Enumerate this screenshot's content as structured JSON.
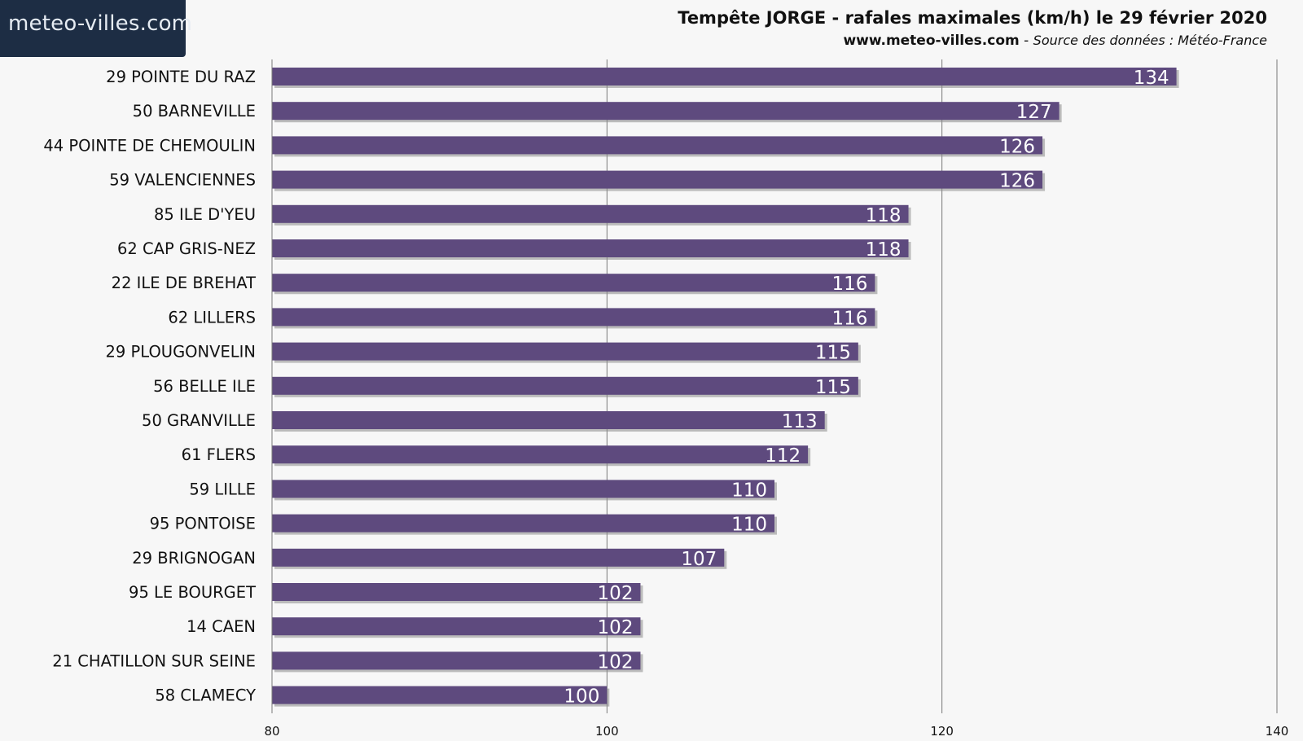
{
  "logo": {
    "prefix": "meteo-",
    "accent": "villes",
    "suffix": ".com"
  },
  "header": {
    "title": "Tempête JORGE - rafales maximales (km/h) le 29 février 2020",
    "site": "www.meteo-villes.com",
    "separator": " - ",
    "source": "Source des données : Météo-France"
  },
  "colors": {
    "bar": "#5e4a7e",
    "bar_shadow": "#8a8a8a",
    "grid": "#7a7a7a",
    "logo_bg": "#1d2d44"
  },
  "chart_data": {
    "type": "bar",
    "orientation": "horizontal",
    "categories": [
      "29 POINTE DU RAZ",
      "50 BARNEVILLE",
      "44 POINTE DE CHEMOULIN",
      "59 VALENCIENNES",
      "85 ILE D'YEU",
      "62 CAP GRIS-NEZ",
      "22 ILE DE BREHAT",
      "62 LILLERS",
      "29 PLOUGONVELIN",
      "56 BELLE ILE",
      "50 GRANVILLE",
      "61 FLERS",
      "59 LILLE",
      "95 PONTOISE",
      "29 BRIGNOGAN",
      "95 LE BOURGET",
      "14 CAEN",
      "21 CHATILLON SUR SEINE",
      "58 CLAMECY"
    ],
    "values": [
      134,
      127,
      126,
      126,
      118,
      118,
      116,
      116,
      115,
      115,
      113,
      112,
      110,
      110,
      107,
      102,
      102,
      102,
      100
    ],
    "xlim": [
      80,
      140
    ],
    "xticks": [
      80,
      100,
      120,
      140
    ],
    "grid": true,
    "data_labels": true
  }
}
